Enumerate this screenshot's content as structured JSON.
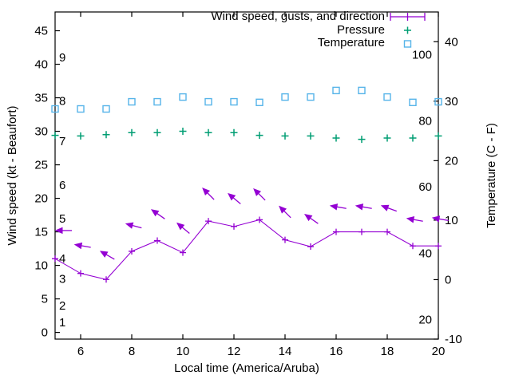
{
  "chart_data": {
    "type": "line",
    "title": "",
    "grid": false,
    "legend_position": "top-right-inside",
    "x": {
      "label": "Local time (America/Aruba)",
      "range": [
        5,
        20
      ],
      "ticks": [
        6,
        8,
        10,
        12,
        14,
        16,
        18,
        20
      ]
    },
    "y_left": {
      "label": "Wind speed (kt - Beaufort)",
      "range": [
        -1,
        47.8
      ],
      "ticks": [
        0,
        5,
        10,
        15,
        20,
        25,
        30,
        35,
        40,
        45
      ]
    },
    "y_right": {
      "label": "Temperature (C - F)",
      "range": [
        -10,
        45
      ],
      "ticks": [
        -10,
        0,
        10,
        20,
        30,
        40
      ]
    },
    "beaufort_scale_labels": [
      {
        "text": "1",
        "kt": 1.5
      },
      {
        "text": "2",
        "kt": 4
      },
      {
        "text": "3",
        "kt": 8
      },
      {
        "text": "4",
        "kt": 11
      },
      {
        "text": "5",
        "kt": 17
      },
      {
        "text": "6",
        "kt": 22
      },
      {
        "text": "7",
        "kt": 28.5
      },
      {
        "text": "8",
        "kt": 34.5
      },
      {
        "text": "9",
        "kt": 41
      }
    ],
    "fahrenheit_scale_labels": [
      {
        "text": "20",
        "celsius": -6.7
      },
      {
        "text": "40",
        "celsius": 4.4
      },
      {
        "text": "60",
        "celsius": 15.6
      },
      {
        "text": "80",
        "celsius": 26.7
      },
      {
        "text": "100",
        "celsius": 37.8
      }
    ],
    "x_hours": [
      5,
      6,
      7,
      8,
      9,
      10,
      11,
      12,
      13,
      14,
      15,
      16,
      17,
      18,
      19,
      20
    ],
    "series": [
      {
        "name": "Wind speed, gusts, and direction",
        "type": "line-with-markers-and-vectors",
        "axis": "left",
        "color": "#9400d3",
        "marker": "plus",
        "values": [
          11.0,
          8.8,
          7.9,
          12.1,
          13.7,
          11.9,
          16.6,
          15.8,
          16.8,
          13.8,
          12.8,
          15.0,
          15.0,
          15.0,
          12.9,
          12.9
        ],
        "gusts_kt": [
          15.2,
          13.1,
          12.1,
          16.2,
          18.3,
          16.3,
          21.5,
          20.7,
          21.4,
          18.8,
          17.6,
          18.9,
          18.9,
          18.9,
          17.0,
          17.1
        ],
        "direction_screen_deg": [
          180,
          170,
          150,
          165,
          145,
          140,
          135,
          140,
          135,
          135,
          145,
          170,
          170,
          160,
          170,
          170
        ]
      },
      {
        "name": "Pressure",
        "type": "scatter",
        "axis": "left",
        "color": "#009e73",
        "marker": "plus",
        "values": [
          29.4,
          29.3,
          29.5,
          29.8,
          29.8,
          30.0,
          29.8,
          29.8,
          29.4,
          29.3,
          29.3,
          29.0,
          28.8,
          29.0,
          29.0,
          29.3
        ]
      },
      {
        "name": "Temperature",
        "type": "scatter",
        "axis": "right",
        "color": "#56b4e9",
        "marker": "open-square",
        "values": [
          28.7,
          28.7,
          28.7,
          29.9,
          29.9,
          30.7,
          29.9,
          29.9,
          29.8,
          30.7,
          30.7,
          31.8,
          31.8,
          30.7,
          29.8,
          29.9
        ]
      }
    ],
    "colors": {
      "wind": "#9400d3",
      "pressure": "#009e73",
      "temperature": "#56b4e9",
      "axis": "#000000",
      "background": "#ffffff"
    }
  }
}
